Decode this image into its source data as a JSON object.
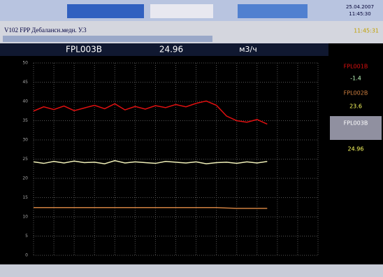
{
  "window": {
    "title": "V102 FPP Дебалансн.медн. У.3",
    "time": "11:45:31",
    "date": "25.04.2007",
    "clock": "11:45:30"
  },
  "chart_data": {
    "type": "line",
    "unit": "м3/ч",
    "xlim": [
      0,
      14
    ],
    "xticks": [
      0,
      1,
      2,
      3,
      4,
      5,
      6,
      7,
      8,
      9,
      10,
      11,
      12,
      13,
      14
    ],
    "ylim": [
      0,
      50
    ],
    "yticks": [
      0,
      5,
      10,
      15,
      20,
      25,
      30,
      35,
      40,
      45,
      50
    ],
    "grid": true,
    "x": [
      0,
      0.5,
      1,
      1.5,
      2,
      2.5,
      3,
      3.5,
      4,
      4.5,
      5,
      5.5,
      6,
      6.5,
      7,
      7.5,
      8,
      8.5,
      9,
      9.5,
      10,
      10.5,
      11,
      11.5
    ],
    "series": [
      {
        "name": "FPL001B",
        "color": "#e01010",
        "current": -1.4,
        "values": [
          37.5,
          38.6,
          37.9,
          38.8,
          37.6,
          38.3,
          39.0,
          38.1,
          39.4,
          37.8,
          38.7,
          38.0,
          38.9,
          38.4,
          39.2,
          38.6,
          39.5,
          40.1,
          39.0,
          36.2,
          35.0,
          34.6,
          35.3,
          34.1
        ]
      },
      {
        "name": "FPL002B",
        "color": "#d08040",
        "current": 23.6,
        "values": [
          12.4,
          12.4,
          12.4,
          12.4,
          12.4,
          12.4,
          12.4,
          12.4,
          12.4,
          12.4,
          12.4,
          12.4,
          12.4,
          12.4,
          12.4,
          12.4,
          12.4,
          12.4,
          12.4,
          12.3,
          12.2,
          12.2,
          12.2,
          12.2
        ]
      },
      {
        "name": "FPL003B",
        "color": "#f0f0b8",
        "current": 24.96,
        "values": [
          24.3,
          23.9,
          24.4,
          24.0,
          24.5,
          24.1,
          24.2,
          23.8,
          24.6,
          24.0,
          24.3,
          24.1,
          23.9,
          24.4,
          24.2,
          24.0,
          24.3,
          23.8,
          24.1,
          24.2,
          23.9,
          24.3,
          24.0,
          24.4
        ]
      }
    ]
  }
}
